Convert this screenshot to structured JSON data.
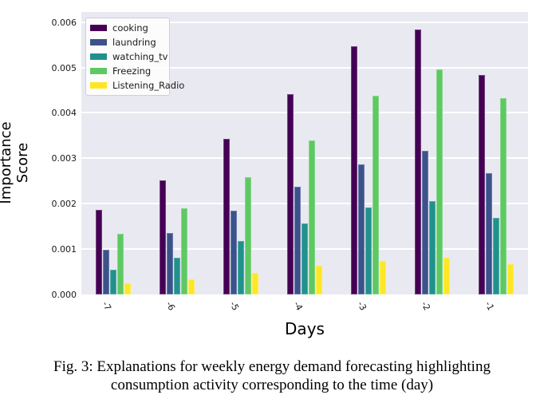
{
  "figure": {
    "caption_line1": "Fig. 3: Explanations for weekly energy demand forecasting highlighting",
    "caption_line2": "consumption activity corresponding to the time (day)"
  },
  "chart_data": {
    "type": "bar",
    "title": "",
    "xlabel": "Days",
    "ylabel": "Importance Score",
    "categories": [
      "-7",
      "-6",
      "-5",
      "-4",
      "-3",
      "-2",
      "-1"
    ],
    "series": [
      {
        "name": "cooking",
        "color": "#440154",
        "values": [
          0.00186,
          0.00252,
          0.00342,
          0.00442,
          0.00547,
          0.00584,
          0.00483
        ]
      },
      {
        "name": "laundring",
        "color": "#3b528b",
        "values": [
          0.00098,
          0.00135,
          0.00185,
          0.00238,
          0.00287,
          0.00317,
          0.00267
        ]
      },
      {
        "name": "watching_tv",
        "color": "#21918c",
        "values": [
          0.00054,
          0.00081,
          0.00117,
          0.00157,
          0.00191,
          0.00206,
          0.00169
        ]
      },
      {
        "name": "Freezing",
        "color": "#5ec962",
        "values": [
          0.00134,
          0.00189,
          0.00258,
          0.00339,
          0.00437,
          0.00495,
          0.00433
        ]
      },
      {
        "name": "Listening_Radio",
        "color": "#fde725",
        "values": [
          0.00025,
          0.00033,
          0.00047,
          0.00063,
          0.00073,
          0.00081,
          0.00066
        ]
      }
    ],
    "ylim": [
      0,
      0.006
    ],
    "yticks": [
      "0.000",
      "0.001",
      "0.002",
      "0.003",
      "0.004",
      "0.005",
      "0.006"
    ],
    "grid": true,
    "plot_bg": "#e9e9f1",
    "grid_color": "#ffffff",
    "legend_position": "upper-left"
  }
}
